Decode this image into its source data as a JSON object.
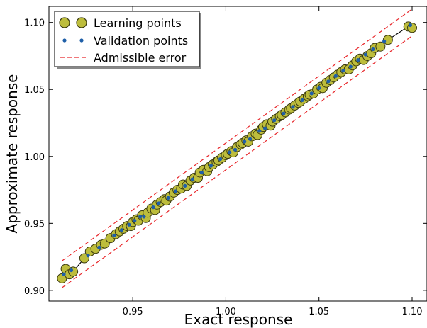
{
  "chart_data": {
    "type": "scatter",
    "xlabel": "Exact response",
    "ylabel": "Approximate response",
    "xlim": [
      0.905,
      1.108
    ],
    "ylim": [
      0.892,
      1.112
    ],
    "xticks": [
      0.95,
      1.0,
      1.05,
      1.1
    ],
    "xtick_labels": [
      "0.95",
      "1.00",
      "1.05",
      "1.10"
    ],
    "yticks": [
      0.9,
      0.95,
      1.0,
      1.05,
      1.1
    ],
    "ytick_labels": [
      "0.90",
      "0.95",
      "1.00",
      "1.05",
      "1.10"
    ],
    "grid": false,
    "legend": {
      "placement": "top-left",
      "entries": [
        "Learning points",
        "Validation points",
        "Admissible error"
      ]
    },
    "colors": {
      "learning_fill": "#bdbd3c",
      "learning_edge": "#3a3a10",
      "validation": "#1f5fa8",
      "error_line": "#e8262a",
      "fit_line": "#000000"
    },
    "admissible_error_offset": 0.01,
    "learning_points": {
      "x": [
        0.912,
        0.914,
        0.916,
        0.918,
        0.924,
        0.927,
        0.93,
        0.933,
        0.935,
        0.938,
        0.941,
        0.943,
        0.945,
        0.947,
        0.949,
        0.95,
        0.952,
        0.953,
        0.955,
        0.957,
        0.958,
        0.96,
        0.962,
        0.963,
        0.965,
        0.967,
        0.968,
        0.97,
        0.972,
        0.974,
        0.976,
        0.977,
        0.979,
        0.981,
        0.983,
        0.985,
        0.986,
        0.988,
        0.99,
        0.991,
        0.993,
        0.995,
        0.996,
        0.998,
        1.0,
        1.001,
        1.003,
        1.004,
        1.006,
        1.008,
        1.009,
        1.011,
        1.012,
        1.014,
        1.016,
        1.017,
        1.019,
        1.02,
        1.022,
        1.024,
        1.025,
        1.027,
        1.029,
        1.03,
        1.032,
        1.034,
        1.035,
        1.037,
        1.039,
        1.04,
        1.042,
        1.044,
        1.045,
        1.047,
        1.049,
        1.051,
        1.052,
        1.054,
        1.056,
        1.058,
        1.06,
        1.062,
        1.064,
        1.066,
        1.068,
        1.07,
        1.072,
        1.074,
        1.076,
        1.078,
        1.08,
        1.083,
        1.087,
        1.098,
        1.1
      ],
      "y": [
        0.909,
        0.916,
        0.912,
        0.914,
        0.924,
        0.929,
        0.931,
        0.934,
        0.935,
        0.939,
        0.942,
        0.944,
        0.946,
        0.948,
        0.948,
        0.951,
        0.953,
        0.952,
        0.956,
        0.954,
        0.958,
        0.961,
        0.96,
        0.964,
        0.966,
        0.968,
        0.967,
        0.97,
        0.973,
        0.975,
        0.976,
        0.979,
        0.978,
        0.982,
        0.984,
        0.984,
        0.988,
        0.99,
        0.989,
        0.992,
        0.994,
        0.996,
        0.997,
        0.999,
        1.001,
        1.002,
        1.004,
        1.003,
        1.007,
        1.009,
        1.01,
        1.012,
        1.011,
        1.015,
        1.017,
        1.016,
        1.02,
        1.022,
        1.024,
        1.023,
        1.026,
        1.028,
        1.03,
        1.031,
        1.033,
        1.035,
        1.036,
        1.038,
        1.04,
        1.041,
        1.043,
        1.045,
        1.046,
        1.047,
        1.05,
        1.052,
        1.051,
        1.055,
        1.057,
        1.059,
        1.061,
        1.063,
        1.065,
        1.065,
        1.068,
        1.071,
        1.073,
        1.072,
        1.075,
        1.077,
        1.081,
        1.082,
        1.087,
        1.097,
        1.096
      ]
    },
    "validation_points": {
      "x": [
        0.913,
        0.917,
        0.926,
        0.932,
        0.94,
        0.944,
        0.948,
        0.951,
        0.954,
        0.956,
        0.961,
        0.964,
        0.969,
        0.973,
        0.978,
        0.982,
        0.987,
        0.992,
        0.997,
        1.002,
        1.005,
        1.01,
        1.013,
        1.018,
        1.021,
        1.026,
        1.031,
        1.036,
        1.041,
        1.046,
        1.05,
        1.055,
        1.059,
        1.063,
        1.067,
        1.071,
        1.075,
        1.079,
        1.085,
        1.099
      ],
      "y": [
        0.912,
        0.915,
        0.926,
        0.932,
        0.941,
        0.945,
        0.949,
        0.952,
        0.955,
        0.955,
        0.962,
        0.965,
        0.969,
        0.974,
        0.978,
        0.983,
        0.988,
        0.993,
        0.998,
        1.003,
        1.005,
        1.011,
        1.013,
        1.019,
        1.021,
        1.027,
        1.032,
        1.037,
        1.042,
        1.047,
        1.051,
        1.056,
        1.06,
        1.064,
        1.067,
        1.072,
        1.076,
        1.08,
        1.086,
        1.098
      ]
    }
  }
}
